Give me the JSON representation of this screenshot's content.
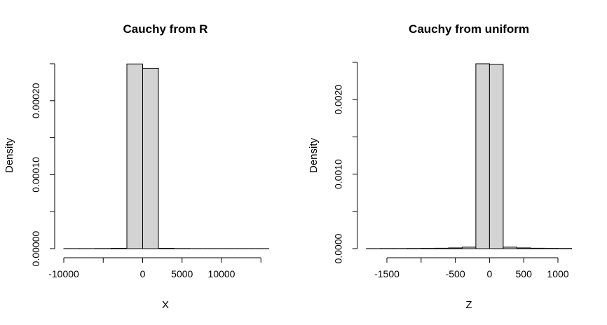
{
  "chart_data": [
    {
      "type": "bar",
      "title": "Cauchy from R",
      "xlabel": "X",
      "ylabel": "Density",
      "xlim": [
        -10000,
        15000
      ],
      "ylim": [
        0,
        0.00025
      ],
      "x_ticks": [
        -10000,
        -5000,
        0,
        5000,
        10000,
        15000
      ],
      "x_tick_labels": [
        "-10000",
        "",
        "0",
        "5000",
        "10000",
        ""
      ],
      "y_ticks": [
        0,
        5e-05,
        0.0001,
        0.00015,
        0.0002,
        0.00025
      ],
      "y_tick_labels": [
        "0.00000",
        "",
        "0.00010",
        "",
        "0.00020",
        ""
      ],
      "bins": [
        {
          "x0": -10000,
          "x1": -8000,
          "density": 1e-07
        },
        {
          "x0": -8000,
          "x1": -6000,
          "density": 1e-07
        },
        {
          "x0": -6000,
          "x1": -4000,
          "density": 2e-07
        },
        {
          "x0": -4000,
          "x1": -2000,
          "density": 5e-07
        },
        {
          "x0": -2000,
          "x1": 0,
          "density": 0.0002497
        },
        {
          "x0": 0,
          "x1": 2000,
          "density": 0.0002439
        },
        {
          "x0": 2000,
          "x1": 4000,
          "density": 5e-07
        },
        {
          "x0": 4000,
          "x1": 6000,
          "density": 2e-07
        },
        {
          "x0": 6000,
          "x1": 8000,
          "density": 1e-07
        },
        {
          "x0": 8000,
          "x1": 10000,
          "density": 1e-07
        },
        {
          "x0": 10000,
          "x1": 12000,
          "density": 1e-07
        },
        {
          "x0": 12000,
          "x1": 14000,
          "density": 1e-07
        },
        {
          "x0": 14000,
          "x1": 16000,
          "density": 1e-07
        }
      ]
    },
    {
      "type": "bar",
      "title": "Cauchy from uniform",
      "xlabel": "Z",
      "ylabel": "Density",
      "xlim": [
        -1500,
        1000
      ],
      "ylim": [
        0,
        0.0025
      ],
      "x_ticks": [
        -1500,
        -1000,
        -500,
        0,
        500,
        1000
      ],
      "x_tick_labels": [
        "-1500",
        "",
        "-500",
        "0",
        "500",
        "1000"
      ],
      "y_ticks": [
        0,
        0.0005,
        0.001,
        0.0015,
        0.002,
        0.0025
      ],
      "y_tick_labels": [
        "0.0000",
        "",
        "0.0010",
        "",
        "0.0020",
        ""
      ],
      "bins": [
        {
          "x0": -1800,
          "x1": -1600,
          "density": 1e-06
        },
        {
          "x0": -1600,
          "x1": -1400,
          "density": 2e-06
        },
        {
          "x0": -1400,
          "x1": -1200,
          "density": 2e-06
        },
        {
          "x0": -1200,
          "x1": -1000,
          "density": 3e-06
        },
        {
          "x0": -1000,
          "x1": -800,
          "density": 4e-06
        },
        {
          "x0": -800,
          "x1": -600,
          "density": 6e-06
        },
        {
          "x0": -600,
          "x1": -400,
          "density": 1e-05
        },
        {
          "x0": -400,
          "x1": -200,
          "density": 2e-05
        },
        {
          "x0": -200,
          "x1": 0,
          "density": 0.002481
        },
        {
          "x0": 0,
          "x1": 200,
          "density": 0.002472
        },
        {
          "x0": 200,
          "x1": 400,
          "density": 2e-05
        },
        {
          "x0": 400,
          "x1": 600,
          "density": 1e-05
        },
        {
          "x0": 600,
          "x1": 800,
          "density": 6e-06
        },
        {
          "x0": 800,
          "x1": 1000,
          "density": 4e-06
        },
        {
          "x0": 1000,
          "x1": 1200,
          "density": 3e-06
        }
      ]
    }
  ]
}
